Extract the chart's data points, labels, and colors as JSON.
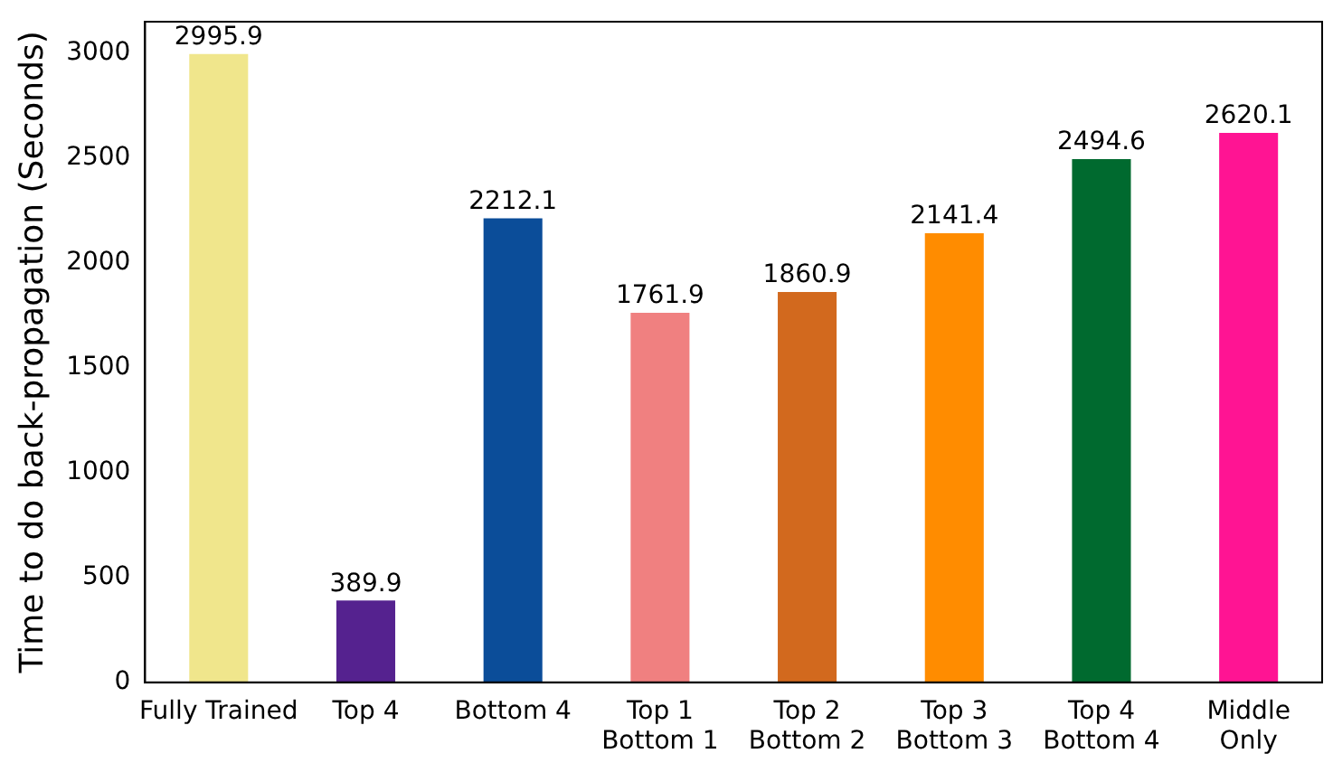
{
  "chart_data": {
    "type": "bar",
    "ylabel": "Time to do back-propagation (Seconds)",
    "categories": [
      "Fully Trained",
      "Top 4",
      "Bottom 4",
      "Top 1\nBottom 1",
      "Top 2\nBottom 2",
      "Top 3\nBottom 3",
      "Top 4\nBottom 4",
      "Middle\nOnly"
    ],
    "values": [
      2995.9,
      389.9,
      2212.1,
      1761.9,
      1860.9,
      2141.4,
      2494.6,
      2620.1
    ],
    "colors": [
      "#f0e68c",
      "#55228f",
      "#0b4d99",
      "#f08080",
      "#d2691e",
      "#ff8c00",
      "#006a2f",
      "#ff1493"
    ],
    "ylim": [
      0,
      3150
    ],
    "yticks": [
      0,
      500,
      1000,
      1500,
      2000,
      2500,
      3000
    ],
    "grid": false,
    "legend": false,
    "data_labels": true
  }
}
